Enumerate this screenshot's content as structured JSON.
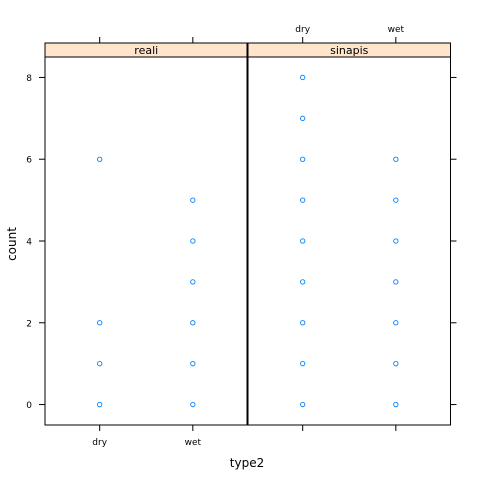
{
  "chart_data": {
    "type": "scatter",
    "xlabel": "type2",
    "ylabel": "count",
    "categories": [
      "dry",
      "wet"
    ],
    "yticks": [
      0,
      2,
      4,
      6,
      8
    ],
    "ylim": [
      -0.5,
      8.5
    ],
    "grid": false,
    "panels": [
      {
        "strip_label": "reali",
        "points": [
          {
            "x": "dry",
            "y": [
              0,
              1,
              2,
              6
            ]
          },
          {
            "x": "wet",
            "y": [
              0,
              1,
              2,
              3,
              4,
              5
            ]
          }
        ]
      },
      {
        "strip_label": "sinapis",
        "points": [
          {
            "x": "dry",
            "y": [
              0,
              1,
              2,
              3,
              4,
              5,
              6,
              7,
              8
            ]
          },
          {
            "x": "wet",
            "y": [
              0,
              1,
              2,
              3,
              4,
              5,
              6
            ]
          }
        ]
      }
    ],
    "colors": {
      "point_stroke": "#0080ff",
      "strip_fill": "#ffe5cc",
      "axis": "#000000"
    }
  }
}
